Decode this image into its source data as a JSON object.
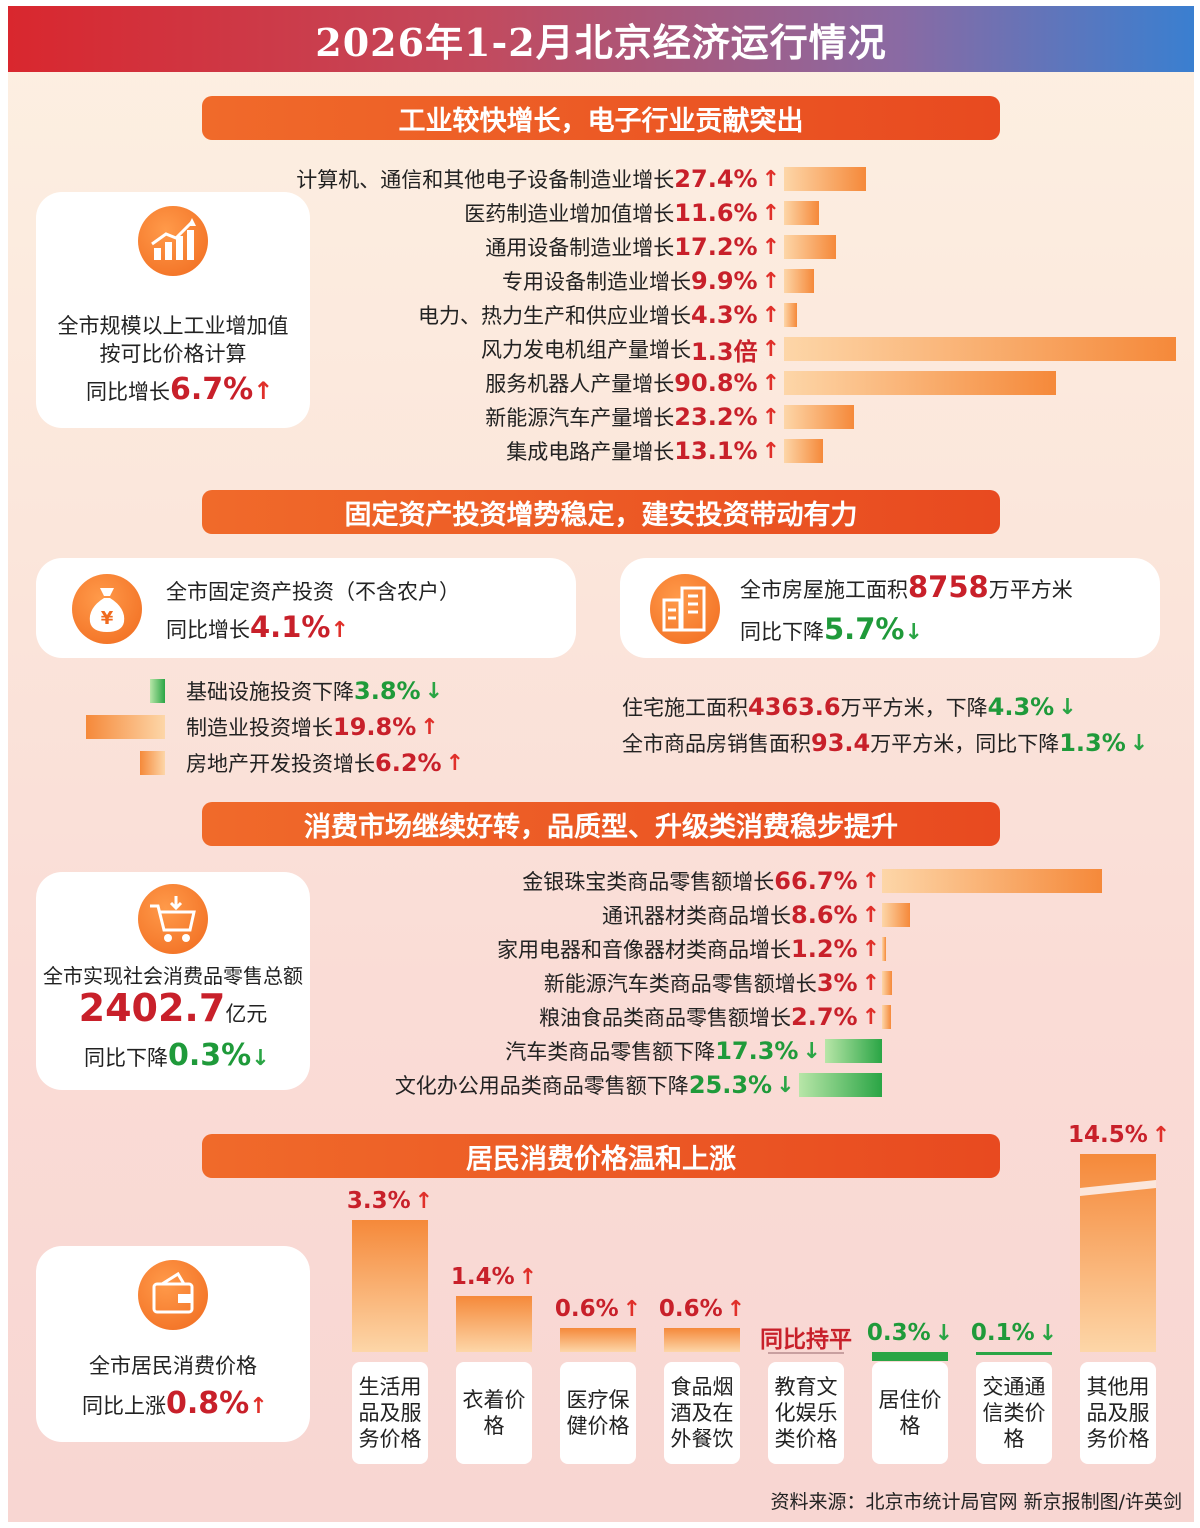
{
  "title": "2026年1-2月北京经济运行情况",
  "colors": {
    "accent_red": "#c8202a",
    "accent_green": "#1f9a3a",
    "section_orange": "#ec5a24"
  },
  "industry": {
    "heading": "工业较快增长，电子行业贡献突出",
    "card": {
      "icon": "rising-chart-icon",
      "line1": "全市规模以上工业增加值",
      "line2": "按可比价格计算",
      "prefix": "同比增长",
      "value": "6.7%"
    },
    "items": [
      {
        "label": "计算机、通信和其他电子设备制造业增长",
        "value": "27.4%",
        "pct": 27.4
      },
      {
        "label": "医药制造业增加值增长",
        "value": "11.6%",
        "pct": 11.6
      },
      {
        "label": "通用设备制造业增长",
        "value": "17.2%",
        "pct": 17.2
      },
      {
        "label": "专用设备制造业增长",
        "value": "9.9%",
        "pct": 9.9
      },
      {
        "label": "电力、热力生产和供应业增长",
        "value": "4.3%",
        "pct": 4.3
      },
      {
        "label": "风力发电机组产量增长",
        "value": "1.3倍",
        "pct": 130
      },
      {
        "label": "服务机器人产量增长",
        "value": "90.8%",
        "pct": 90.8
      },
      {
        "label": "新能源汽车产量增长",
        "value": "23.2%",
        "pct": 23.2
      },
      {
        "label": "集成电路产量增长",
        "value": "13.1%",
        "pct": 13.1
      }
    ]
  },
  "investment": {
    "heading": "固定资产投资增势稳定，建安投资带动有力",
    "card_left": {
      "icon": "money-bag-icon",
      "line1": "全市固定资产投资（不含农户）",
      "prefix": "同比增长",
      "value": "4.1%"
    },
    "card_right": {
      "icon": "buildings-icon",
      "line1_prefix": "全市房屋施工面积",
      "line1_value": "8758",
      "line1_unit": "万平方米",
      "prefix": "同比下降",
      "value": "5.7%"
    },
    "left_items": [
      {
        "label": "基础设施投资下降",
        "value": "3.8%",
        "direction": "down",
        "pct": 3.8
      },
      {
        "label": "制造业投资增长",
        "value": "19.8%",
        "direction": "up",
        "pct": 19.8
      },
      {
        "label": "房地产开发投资增长",
        "value": "6.2%",
        "direction": "up",
        "pct": 6.2
      }
    ],
    "right_items": [
      {
        "prefix": "住宅施工面积",
        "value1": "4363.6",
        "mid": "万平方米，下降",
        "value2": "4.3%"
      },
      {
        "prefix": "全市商品房销售面积",
        "value1": "93.4",
        "mid": "万平方米，同比下降",
        "value2": "1.3%"
      }
    ]
  },
  "consumption": {
    "heading": "消费市场继续好转，品质型、升级类消费稳步提升",
    "card": {
      "icon": "shopping-cart-icon",
      "line1": "全市实现社会消费品零售总额",
      "amount": "2402.7",
      "unit": "亿元",
      "prefix": "同比下降",
      "value": "0.3%"
    },
    "items": [
      {
        "label": "金银珠宝类商品零售额增长",
        "value": "66.7%",
        "direction": "up",
        "pct": 66.7
      },
      {
        "label": "通讯器材类商品增长",
        "value": "8.6%",
        "direction": "up",
        "pct": 8.6
      },
      {
        "label": "家用电器和音像器材类商品增长",
        "value": "1.2%",
        "direction": "up",
        "pct": 1.2
      },
      {
        "label": "新能源汽车类商品零售额增长",
        "value": "3%",
        "direction": "up",
        "pct": 3
      },
      {
        "label": "粮油食品类商品零售额增长",
        "value": "2.7%",
        "direction": "up",
        "pct": 2.7
      },
      {
        "label": "汽车类商品零售额下降",
        "value": "17.3%",
        "direction": "down",
        "pct": 17.3
      },
      {
        "label": "文化办公用品类商品零售额下降",
        "value": "25.3%",
        "direction": "down",
        "pct": 25.3
      }
    ]
  },
  "cpi": {
    "heading": "居民消费价格温和上涨",
    "card": {
      "icon": "wallet-icon",
      "line1": "全市居民消费价格",
      "prefix": "同比上涨",
      "value": "0.8%"
    },
    "items": [
      {
        "label": "生活用品及服务价格",
        "value": "3.3%",
        "direction": "up",
        "pct": 3.3
      },
      {
        "label": "衣着价格",
        "value": "1.4%",
        "direction": "up",
        "pct": 1.4
      },
      {
        "label": "医疗保健价格",
        "value": "0.6%",
        "direction": "up",
        "pct": 0.6
      },
      {
        "label": "食品烟酒及在外餐饮",
        "value": "0.6%",
        "direction": "up",
        "pct": 0.6
      },
      {
        "label": "教育文化娱乐类价格",
        "value": "同比持平",
        "direction": "flat",
        "pct": 0
      },
      {
        "label": "居住价格",
        "value": "0.3%",
        "direction": "down",
        "pct": 0.3
      },
      {
        "label": "交通通信类价格",
        "value": "0.1%",
        "direction": "down",
        "pct": 0.1
      },
      {
        "label": "其他用品及服务价格",
        "value": "14.5%",
        "direction": "up",
        "pct": 14.5
      }
    ]
  },
  "source": "资料来源：北京市统计局官网 新京报制图/许英剑"
}
